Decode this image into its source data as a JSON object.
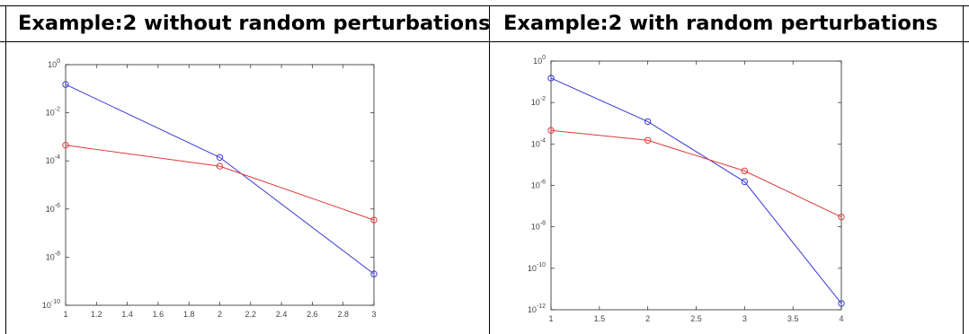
{
  "document": {
    "header_left": "Example:2 without random perturbations",
    "header_right": "Example:2 with random perturbations"
  },
  "chart_data": [
    {
      "type": "line",
      "title": "",
      "xlabel": "",
      "ylabel": "",
      "y_scale": "log",
      "xlim": [
        1,
        3
      ],
      "ylim": [
        1e-10,
        1
      ],
      "grid": false,
      "x_ticks": [
        1,
        1.2,
        1.4,
        1.6,
        1.8,
        2,
        2.2,
        2.4,
        2.6,
        2.8,
        3
      ],
      "x_tick_labels": [
        "1",
        "1.2",
        "1.4",
        "1.6",
        "1.8",
        "2",
        "2.2",
        "2.4",
        "2.6",
        "2.8",
        "3"
      ],
      "y_ticks": [
        1,
        0.01,
        0.0001,
        1e-06,
        1e-08,
        1e-10
      ],
      "y_tick_labels": [
        {
          "base": "10",
          "exp": "0"
        },
        {
          "base": "10",
          "exp": "-2"
        },
        {
          "base": "10",
          "exp": "-4"
        },
        {
          "base": "10",
          "exp": "-6"
        },
        {
          "base": "10",
          "exp": "-8"
        },
        {
          "base": "10",
          "exp": "-10"
        }
      ],
      "series": [
        {
          "color": "#3a3ad6",
          "marker": "circle",
          "x": [
            1,
            2,
            3
          ],
          "values": [
            0.15,
            0.00014,
            2e-09
          ]
        },
        {
          "color": "#e03a3a",
          "marker": "circle",
          "x": [
            1,
            2,
            3
          ],
          "values": [
            0.00045,
            6e-05,
            3.5e-07
          ]
        }
      ]
    },
    {
      "type": "line",
      "title": "",
      "xlabel": "",
      "ylabel": "",
      "y_scale": "log",
      "xlim": [
        1,
        4
      ],
      "ylim": [
        1e-12,
        1
      ],
      "grid": false,
      "x_ticks": [
        1,
        1.5,
        2,
        2.5,
        3,
        3.5,
        4
      ],
      "x_tick_labels": [
        "1",
        "1.5",
        "2",
        "2.5",
        "3",
        "3.5",
        "4"
      ],
      "y_ticks": [
        1,
        0.01,
        0.0001,
        1e-06,
        1e-08,
        1e-10,
        1e-12
      ],
      "y_tick_labels": [
        {
          "base": "10",
          "exp": "0"
        },
        {
          "base": "10",
          "exp": "-2"
        },
        {
          "base": "10",
          "exp": "-4"
        },
        {
          "base": "10",
          "exp": "-6"
        },
        {
          "base": "10",
          "exp": "-8"
        },
        {
          "base": "10",
          "exp": "-10"
        },
        {
          "base": "10",
          "exp": "-12"
        }
      ],
      "series": [
        {
          "color": "#3a3ad6",
          "marker": "circle",
          "x": [
            1,
            2,
            3,
            4
          ],
          "values": [
            0.15,
            0.0012,
            1.5e-06,
            2e-12
          ]
        },
        {
          "color": "#e03a3a",
          "marker": "circle",
          "x": [
            1,
            2,
            3,
            4
          ],
          "values": [
            0.00045,
            0.00015,
            5e-06,
            3e-08
          ]
        }
      ]
    }
  ]
}
